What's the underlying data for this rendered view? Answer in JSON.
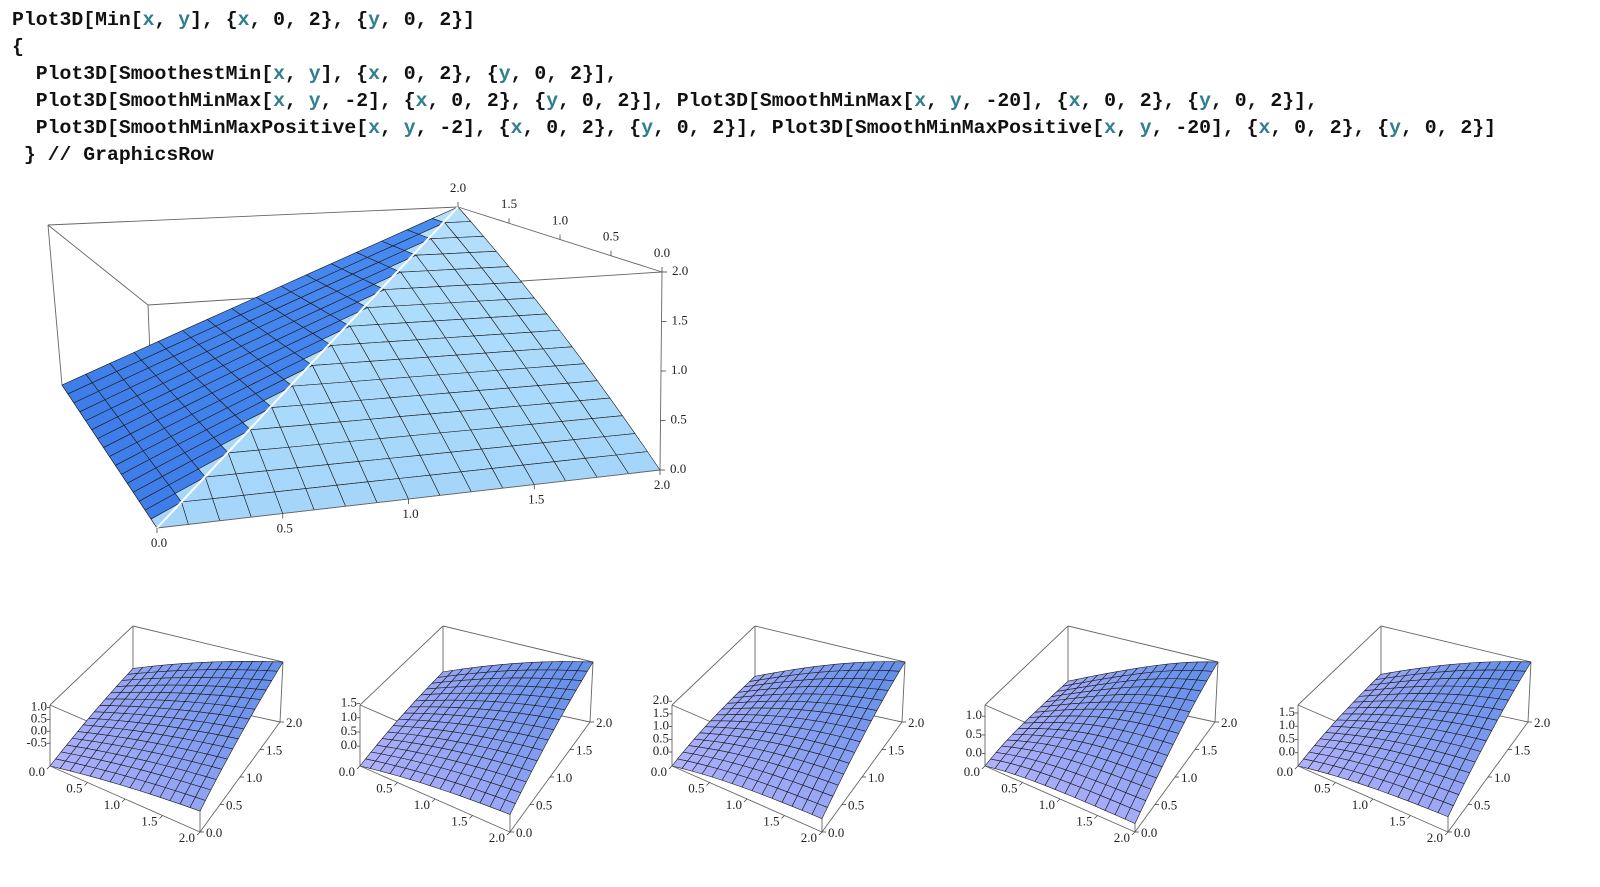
{
  "code": {
    "lines": [
      [
        "Plot3D[Min[",
        {
          "text": "x",
          "color": "#2f7f8f"
        },
        ", ",
        {
          "text": "y",
          "color": "#2f7f8f"
        },
        "], {",
        {
          "text": "x",
          "color": "#2f7f8f"
        },
        ", 0, 2}, {",
        {
          "text": "y",
          "color": "#2f7f8f"
        },
        ", 0, 2}]"
      ],
      [
        "{"
      ],
      [
        "  Plot3D[SmoothestMin[",
        {
          "text": "x",
          "color": "#2f7f8f"
        },
        ", ",
        {
          "text": "y",
          "color": "#2f7f8f"
        },
        "], {",
        {
          "text": "x",
          "color": "#2f7f8f"
        },
        ", 0, 2}, {",
        {
          "text": "y",
          "color": "#2f7f8f"
        },
        ", 0, 2}],"
      ],
      [
        "  Plot3D[SmoothMinMax[",
        {
          "text": "x",
          "color": "#2f7f8f"
        },
        ", ",
        {
          "text": "y",
          "color": "#2f7f8f"
        },
        ", -2], {",
        {
          "text": "x",
          "color": "#2f7f8f"
        },
        ", 0, 2}, {",
        {
          "text": "y",
          "color": "#2f7f8f"
        },
        ", 0, 2}], Plot3D[SmoothMinMax[",
        {
          "text": "x",
          "color": "#2f7f8f"
        },
        ", ",
        {
          "text": "y",
          "color": "#2f7f8f"
        },
        ", -20], {",
        {
          "text": "x",
          "color": "#2f7f8f"
        },
        ", 0, 2}, {",
        {
          "text": "y",
          "color": "#2f7f8f"
        },
        ", 0, 2}],"
      ],
      [
        "  Plot3D[SmoothMinMaxPositive[",
        {
          "text": "x",
          "color": "#2f7f8f"
        },
        ", ",
        {
          "text": "y",
          "color": "#2f7f8f"
        },
        ", -2], {",
        {
          "text": "x",
          "color": "#2f7f8f"
        },
        ", 0, 2}, {",
        {
          "text": "y",
          "color": "#2f7f8f"
        },
        ", 0, 2}], Plot3D[SmoothMinMaxPositive[",
        {
          "text": "x",
          "color": "#2f7f8f"
        },
        ", ",
        {
          "text": "y",
          "color": "#2f7f8f"
        },
        ", -20], {",
        {
          "text": "x",
          "color": "#2f7f8f"
        },
        ", 0, 2}, {",
        {
          "text": "y",
          "color": "#2f7f8f"
        },
        ", 0, 2}]"
      ],
      [
        " } // GraphicsRow"
      ]
    ]
  },
  "plots": [
    {
      "xlim": [
        0,
        2
      ],
      "ylim": [
        0,
        2
      ],
      "zlim": [
        0,
        2
      ],
      "xticks": [
        {
          "value": 0,
          "label": "0.0"
        },
        0.5,
        {
          "value": 1,
          "label": "1.0"
        },
        1.5,
        {
          "value": 2,
          "label": "2.0"
        }
      ],
      "yticks": [
        {
          "value": 0,
          "label": "0.0"
        },
        0.5,
        {
          "value": 1,
          "label": "1.0"
        },
        1.5,
        {
          "value": 2,
          "label": "2.0"
        }
      ],
      "zticks": [
        {
          "value": 0,
          "label": "0.0"
        },
        0.5,
        {
          "value": 1,
          "label": "1.0"
        },
        1.5,
        {
          "value": 2,
          "label": "2.0"
        }
      ]
    },
    {
      "xlim": [
        0,
        2
      ],
      "ylim": [
        0,
        2
      ],
      "zlim": [
        -1.45,
        1.1
      ],
      "xticks": [
        {
          "value": 0,
          "label": "0.0"
        },
        0.5,
        {
          "value": 1,
          "label": "1.0"
        },
        1.5,
        {
          "value": 2,
          "label": "2.0"
        }
      ],
      "yticks": [
        {
          "value": 0,
          "label": "0.0"
        },
        0.5,
        {
          "value": 1,
          "label": "1.0"
        },
        1.5,
        {
          "value": 2,
          "label": "2.0"
        }
      ],
      "zticks": [
        -0.5,
        {
          "value": 0,
          "label": "0.0"
        },
        0.5,
        {
          "value": 1,
          "label": "1.0"
        }
      ]
    },
    {
      "xlim": [
        0,
        2
      ],
      "ylim": [
        0,
        2
      ],
      "zlim": [
        -0.7,
        1.45
      ],
      "xticks": [
        {
          "value": 0,
          "label": "0.0"
        },
        0.5,
        {
          "value": 1,
          "label": "1.0"
        },
        1.5,
        {
          "value": 2,
          "label": "2.0"
        }
      ],
      "yticks": [
        {
          "value": 0,
          "label": "0.0"
        },
        0.5,
        {
          "value": 1,
          "label": "1.0"
        },
        1.5,
        {
          "value": 2,
          "label": "2.0"
        }
      ],
      "zticks": [
        {
          "value": 0,
          "label": "0.0"
        },
        0.5,
        {
          "value": 1,
          "label": "1.0"
        },
        1.5
      ]
    },
    {
      "xlim": [
        0,
        2
      ],
      "ylim": [
        0,
        2
      ],
      "zlim": [
        -0.55,
        1.85
      ],
      "xticks": [
        {
          "value": 0,
          "label": "0.0"
        },
        0.5,
        {
          "value": 1,
          "label": "1.0"
        },
        1.5,
        {
          "value": 2,
          "label": "2.0"
        }
      ],
      "yticks": [
        {
          "value": 0,
          "label": "0.0"
        },
        0.5,
        {
          "value": 1,
          "label": "1.0"
        },
        1.5,
        {
          "value": 2,
          "label": "2.0"
        }
      ],
      "zticks": [
        {
          "value": 0,
          "label": "0.0"
        },
        0.5,
        {
          "value": 1,
          "label": "1.0"
        },
        1.5,
        {
          "value": 2,
          "label": "2.0"
        }
      ]
    },
    {
      "xlim": [
        0,
        2
      ],
      "ylim": [
        0,
        2
      ],
      "zlim": [
        -0.33,
        1.3
      ],
      "xticks": [
        {
          "value": 0,
          "label": "0.0"
        },
        0.5,
        {
          "value": 1,
          "label": "1.0"
        },
        1.5,
        {
          "value": 2,
          "label": "2.0"
        }
      ],
      "yticks": [
        {
          "value": 0,
          "label": "0.0"
        },
        0.5,
        {
          "value": 1,
          "label": "1.0"
        },
        1.5,
        {
          "value": 2,
          "label": "2.0"
        }
      ],
      "zticks": [
        {
          "value": 0,
          "label": "0.0"
        },
        0.5,
        {
          "value": 1,
          "label": "1.0"
        }
      ]
    },
    {
      "xlim": [
        0,
        2
      ],
      "ylim": [
        0,
        2
      ],
      "zlim": [
        -0.5,
        1.8
      ],
      "xticks": [
        {
          "value": 0,
          "label": "0.0"
        },
        0.5,
        {
          "value": 1,
          "label": "1.0"
        },
        1.5,
        {
          "value": 2,
          "label": "2.0"
        }
      ],
      "yticks": [
        {
          "value": 0,
          "label": "0.0"
        },
        0.5,
        {
          "value": 1,
          "label": "1.0"
        },
        1.5,
        {
          "value": 2,
          "label": "2.0"
        }
      ],
      "zticks": [
        {
          "value": 0,
          "label": "0.0"
        },
        0.5,
        {
          "value": 1,
          "label": "1.0"
        },
        1.5
      ]
    }
  ]
}
